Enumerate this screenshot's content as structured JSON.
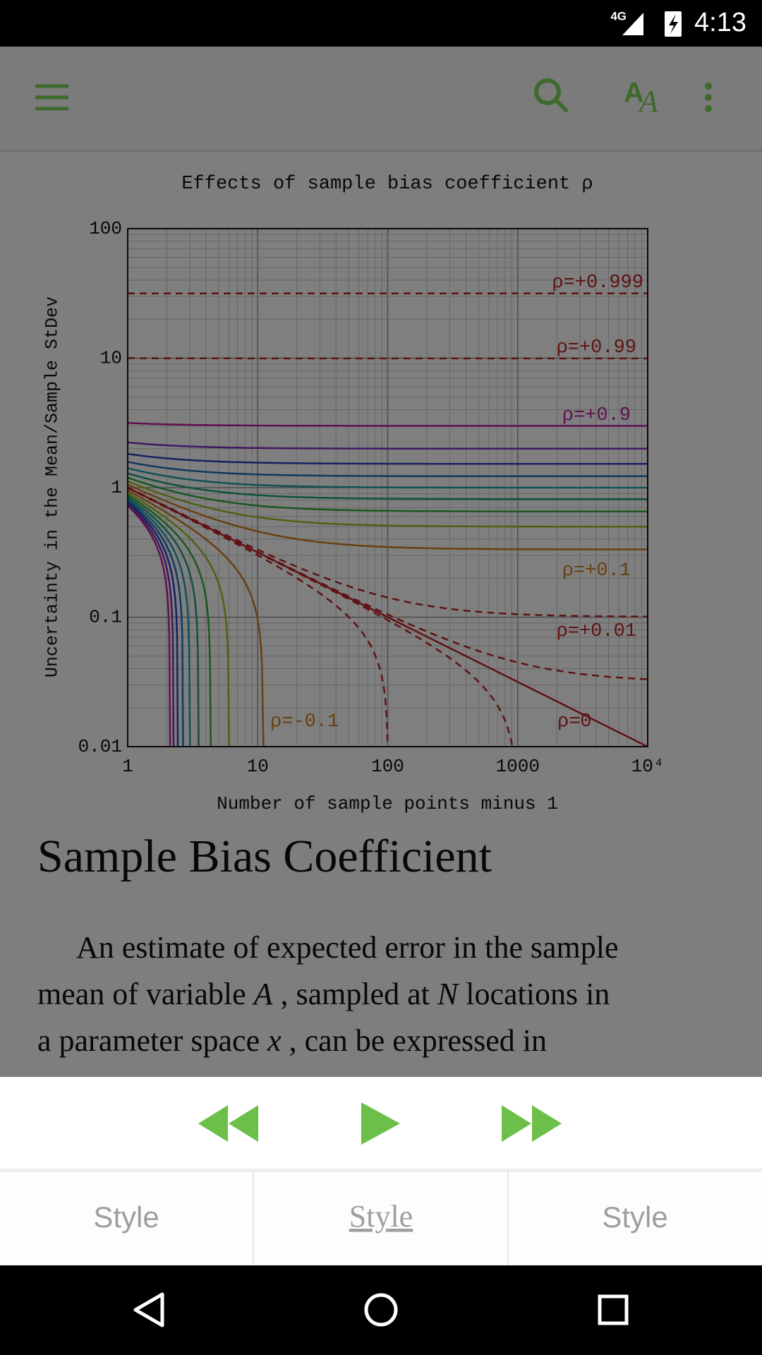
{
  "status_bar": {
    "network": "4G",
    "time": "4:13"
  },
  "figure": {
    "title": "Effects of sample bias coefficient ρ",
    "y_label": "Uncertainty in the Mean/Sample StDev",
    "x_label": "Number of sample points minus 1",
    "y_tick_labels": [
      "0.01",
      "0.1",
      "1",
      "10",
      "100"
    ],
    "x_tick_labels": [
      "1",
      "10",
      "100",
      "1000",
      "10⁴"
    ],
    "curve_labels": [
      "ρ=+0.999",
      "ρ=+0.99",
      "ρ=+0.9",
      "ρ=+0.1",
      "ρ=+0.01",
      "ρ=0",
      "ρ=-0.1"
    ]
  },
  "article": {
    "heading": "Sample Bias Coefficient",
    "paragraph": [
      "An estimate of expected error in the sample",
      "mean of variable ",
      "A",
      " , sampled at ",
      "N",
      " locations in",
      "a parameter space ",
      "x",
      " , can be expressed in"
    ]
  },
  "tabs": [
    "Style",
    "Style",
    "Style"
  ]
}
